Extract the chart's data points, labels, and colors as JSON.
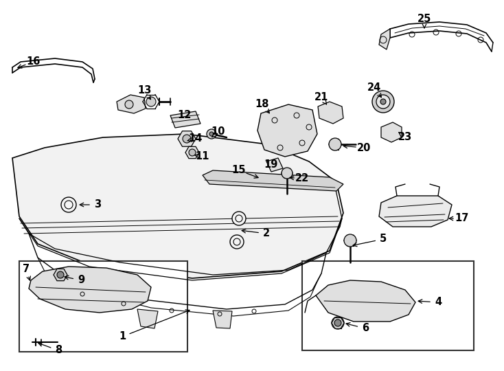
{
  "background_color": "#ffffff",
  "line_color": "#000000",
  "lw": 1.0,
  "fig_width": 7.34,
  "fig_height": 5.4,
  "label_fontsize": 10.5
}
